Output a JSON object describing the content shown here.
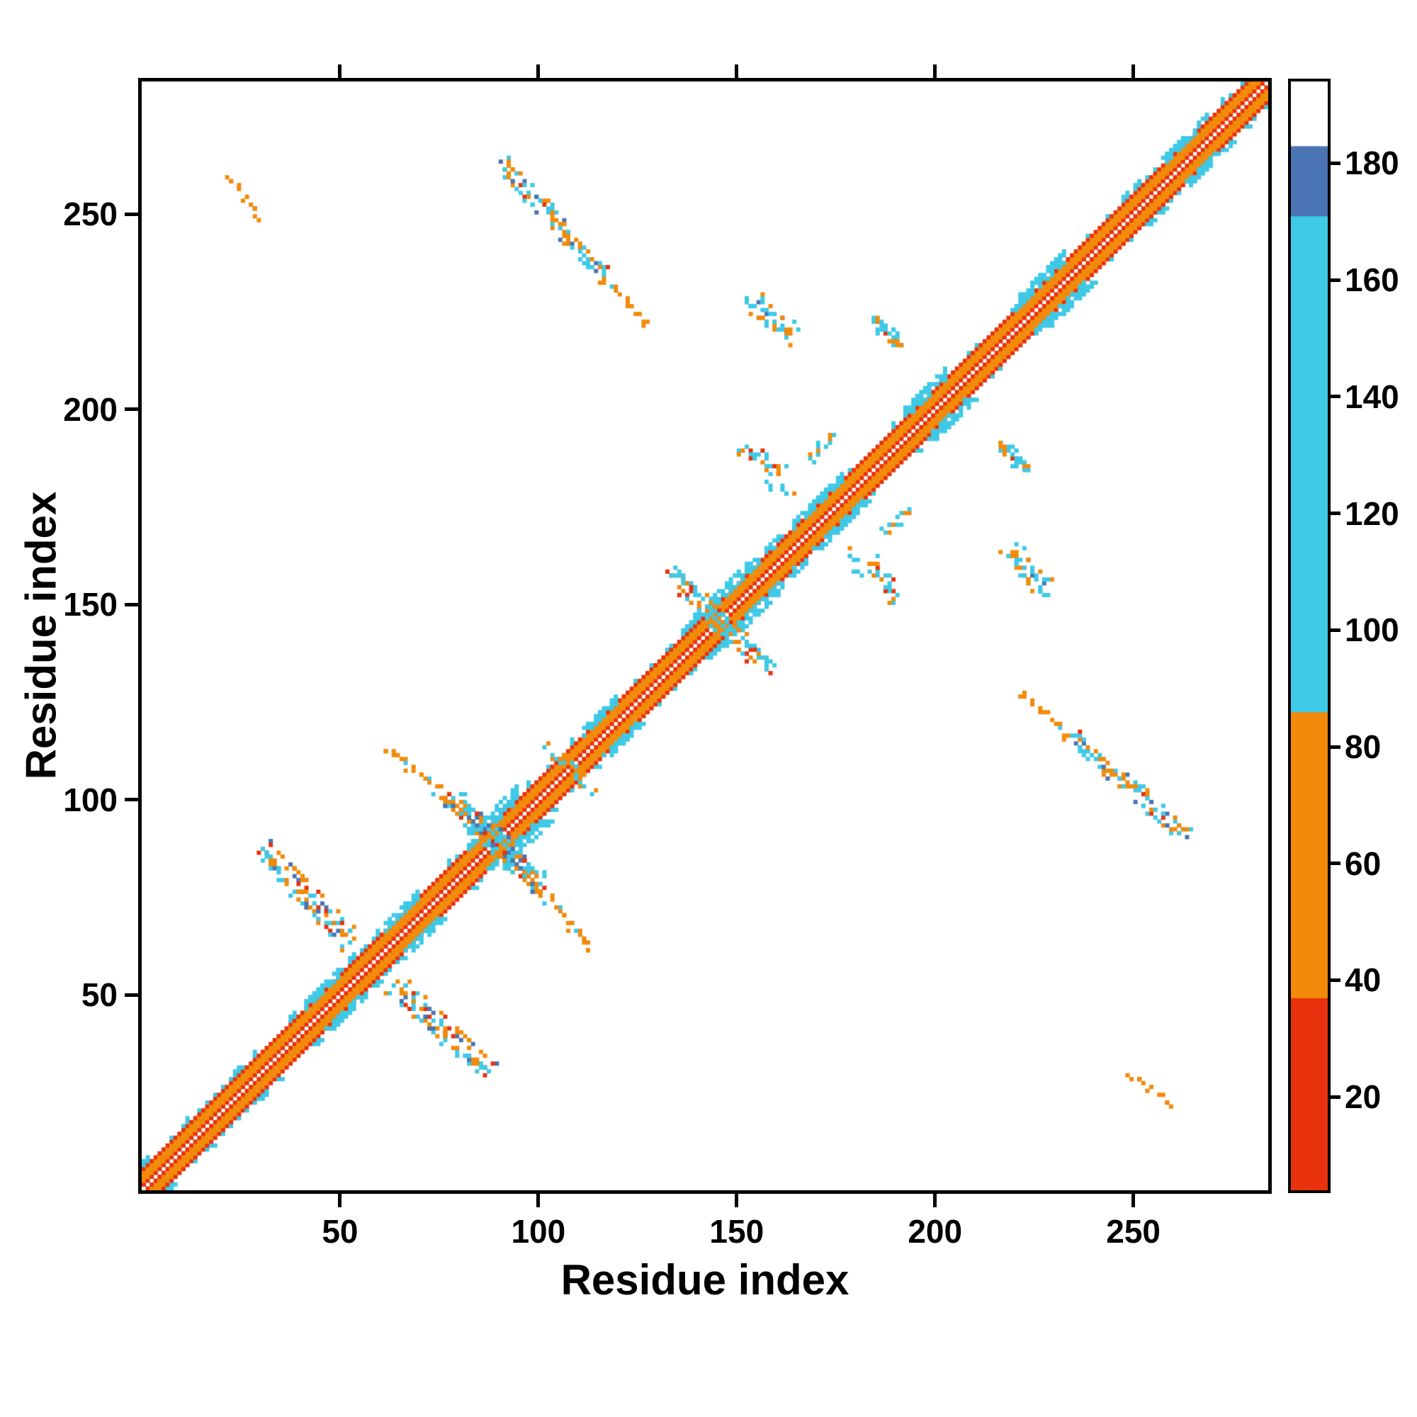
{
  "chart_data": {
    "type": "heatmap",
    "variant": "residue-contact-map",
    "title": "",
    "xlabel": "Residue index",
    "ylabel": "Residue index",
    "xlim": [
      0,
      284
    ],
    "ylim": [
      0,
      284
    ],
    "xticks": [
      50,
      100,
      150,
      200,
      250
    ],
    "yticks": [
      50,
      100,
      150,
      200,
      250
    ],
    "grid": false,
    "background": "#ffffff",
    "palette": {
      "red": "#e7320d",
      "orange": "#f28a0a",
      "cyan": "#3ec9e7",
      "blue": "#4a74b4",
      "white": "#ffffff"
    },
    "colorbar": {
      "range": [
        4,
        194
      ],
      "ticks": [
        20,
        40,
        60,
        80,
        100,
        120,
        140,
        160,
        180
      ],
      "segments": [
        {
          "from": 4,
          "to": 37,
          "color": "red"
        },
        {
          "from": 37,
          "to": 86,
          "color": "orange"
        },
        {
          "from": 86,
          "to": 171,
          "color": "cyan"
        },
        {
          "from": 171,
          "to": 183,
          "color": "blue"
        },
        {
          "from": 183,
          "to": 194,
          "color": "white"
        }
      ]
    },
    "diagonal_band": {
      "center_color": "white",
      "layers": [
        {
          "offsets": [
            1
          ],
          "color": "red"
        },
        {
          "offsets": [
            2,
            3,
            4
          ],
          "color": "orange"
        },
        {
          "offsets": [
            5
          ],
          "color": "red"
        }
      ],
      "fringe": {
        "offsets": [
          6,
          7
        ],
        "color": "cyan",
        "probability": 0.35
      }
    },
    "diagonal_blobs": [
      {
        "center": 45,
        "span": 4,
        "depth": 7
      },
      {
        "center": 65,
        "span": 4,
        "depth": 7
      },
      {
        "center": 88,
        "span": 6,
        "depth": 9
      },
      {
        "center": 115,
        "span": 4,
        "depth": 7
      },
      {
        "center": 148,
        "span": 5,
        "depth": 8
      },
      {
        "center": 155,
        "span": 4,
        "depth": 7
      },
      {
        "center": 170,
        "span": 6,
        "depth": 7
      },
      {
        "center": 197,
        "span": 5,
        "depth": 8
      },
      {
        "center": 226,
        "span": 6,
        "depth": 8
      },
      {
        "center": 262,
        "span": 5,
        "depth": 7
      }
    ],
    "clusters": [
      {
        "x1": 30,
        "y1": 88,
        "x2": 52,
        "y2": 63,
        "w": 2.6,
        "density": 1.5,
        "seed": 1,
        "palette": {
          "cyan": 0.42,
          "orange": 0.36,
          "blue": 0.13,
          "red": 0.09
        }
      },
      {
        "x1": 21,
        "y1": 259,
        "x2": 29,
        "y2": 248,
        "w": 0.8,
        "density": 0.45,
        "seed": 2,
        "palette": {
          "orange": 0.92,
          "red": 0.08
        }
      },
      {
        "x1": 90,
        "y1": 263,
        "x2": 117,
        "y2": 233,
        "w": 1.8,
        "density": 1.15,
        "seed": 3,
        "palette": {
          "cyan": 0.42,
          "orange": 0.38,
          "blue": 0.14,
          "red": 0.06
        }
      },
      {
        "x1": 118,
        "y1": 231,
        "x2": 127,
        "y2": 221,
        "w": 0.9,
        "density": 0.5,
        "seed": 4,
        "palette": {
          "orange": 0.78,
          "cyan": 0.22
        }
      },
      {
        "x1": 77,
        "y1": 101,
        "x2": 97,
        "y2": 80,
        "w": 2.6,
        "density": 1.7,
        "seed": 5,
        "palette": {
          "cyan": 0.48,
          "orange": 0.3,
          "blue": 0.14,
          "red": 0.08
        }
      },
      {
        "x1": 99,
        "y1": 78,
        "x2": 113,
        "y2": 61,
        "w": 0.9,
        "density": 0.5,
        "seed": 6,
        "palette": {
          "orange": 0.82,
          "cyan": 0.18
        }
      },
      {
        "x1": 101,
        "y1": 113,
        "x2": 111,
        "y2": 106,
        "w": 0.9,
        "density": 0.55,
        "seed": 7,
        "palette": {
          "orange": 0.6,
          "cyan": 0.4
        }
      },
      {
        "x1": 133,
        "y1": 158,
        "x2": 149,
        "y2": 141,
        "w": 2.2,
        "density": 1.5,
        "seed": 8,
        "palette": {
          "cyan": 0.58,
          "orange": 0.27,
          "red": 0.1,
          "blue": 0.05
        }
      },
      {
        "x1": 151,
        "y1": 190,
        "x2": 161,
        "y2": 183,
        "w": 1.5,
        "density": 1.0,
        "seed": 9,
        "palette": {
          "cyan": 0.55,
          "orange": 0.35,
          "red": 0.1
        }
      },
      {
        "x1": 153,
        "y1": 228,
        "x2": 164,
        "y2": 218,
        "w": 2.2,
        "density": 1.5,
        "seed": 10,
        "palette": {
          "cyan": 0.62,
          "orange": 0.3,
          "blue": 0.08
        }
      },
      {
        "x1": 184,
        "y1": 223,
        "x2": 191,
        "y2": 216,
        "w": 1.8,
        "density": 1.3,
        "seed": 11,
        "palette": {
          "cyan": 0.56,
          "orange": 0.34,
          "red": 0.1
        }
      },
      {
        "x1": 168,
        "y1": 186,
        "x2": 174,
        "y2": 193,
        "w": 1.1,
        "density": 0.7,
        "seed": 12,
        "palette": {
          "cyan": 0.8,
          "orange": 0.2
        }
      },
      {
        "x1": 158,
        "y1": 182,
        "x2": 163,
        "y2": 177,
        "w": 1.1,
        "density": 0.6,
        "seed": 13,
        "palette": {
          "cyan": 0.7,
          "orange": 0.3
        }
      }
    ],
    "dots": [
      [
        63,
        112,
        "orange"
      ],
      [
        66,
        109,
        "cyan"
      ]
    ]
  }
}
